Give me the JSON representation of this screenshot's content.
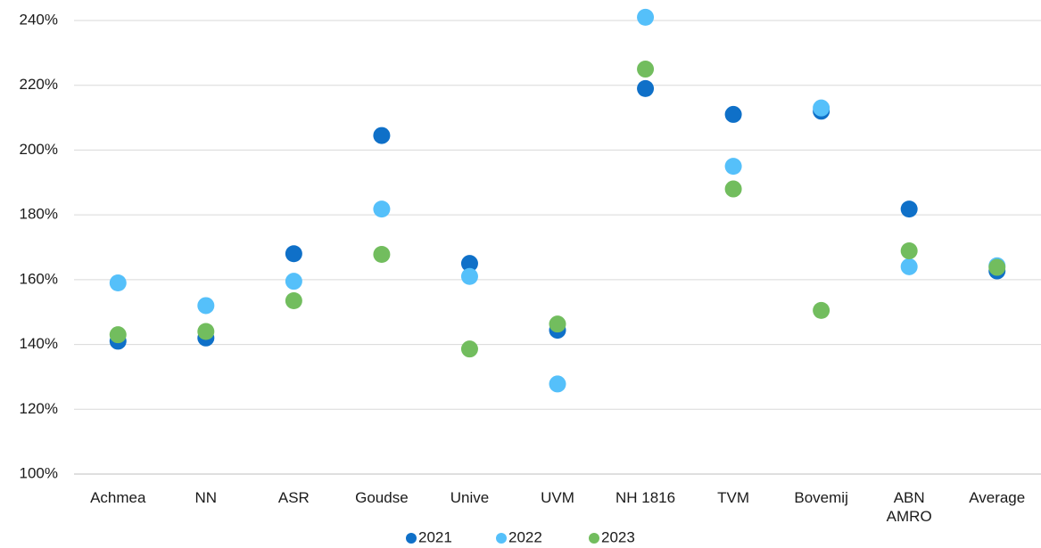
{
  "chart_data": {
    "type": "scatter",
    "categories": [
      "Achmea",
      "NN",
      "ASR",
      "Goudse",
      "Unive",
      "UVM",
      "NH 1816",
      "TVM",
      "Bovemij",
      "ABN AMRO",
      "Average"
    ],
    "series": [
      {
        "name": "2021",
        "color": "#0f70c8",
        "values": [
          141,
          142,
          168,
          204.5,
          165,
          144.4,
          219,
          211,
          212,
          181.8,
          162.7
        ]
      },
      {
        "name": "2022",
        "color": "#55c0fa",
        "values": [
          159,
          152,
          159.5,
          181.8,
          161,
          127.8,
          241,
          195,
          213,
          164,
          164.3
        ]
      },
      {
        "name": "2023",
        "color": "#72bd5e",
        "values": [
          143,
          144,
          153.5,
          167.8,
          138.6,
          146.3,
          225,
          188,
          150.5,
          168.9,
          163.8
        ]
      }
    ],
    "ylim": [
      100,
      240
    ],
    "yticks": [
      {
        "value": 100,
        "label": "100%"
      },
      {
        "value": 120,
        "label": "120%"
      },
      {
        "value": 140,
        "label": "140%"
      },
      {
        "value": 160,
        "label": "160%"
      },
      {
        "value": 180,
        "label": "180%"
      },
      {
        "value": 200,
        "label": "200%"
      },
      {
        "value": 220,
        "label": "220%"
      },
      {
        "value": 240,
        "label": "240%"
      }
    ],
    "grid": true,
    "legend": "bottom"
  }
}
